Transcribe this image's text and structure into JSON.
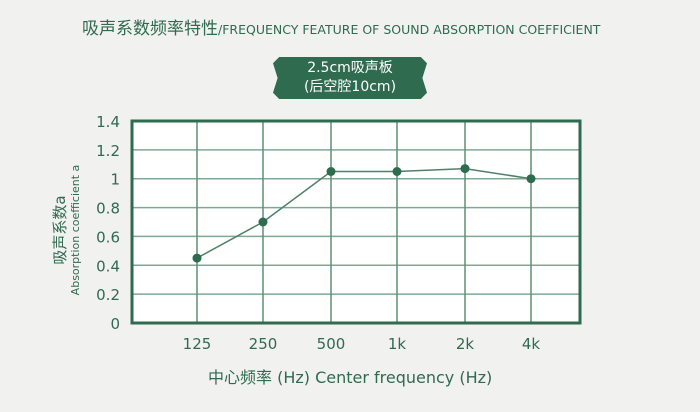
{
  "title": {
    "cn": "吸声系数频率特性",
    "en": "/FREQUENCY FEATURE OF SOUND ABSORPTION COEFFICIENT"
  },
  "badge": {
    "line1": "2.5cm吸声板",
    "line2": "(后空腔10cm)"
  },
  "colors": {
    "accent": "#2f6b4f",
    "background": "#f1f1ef"
  },
  "chart_data": {
    "type": "line",
    "categories": [
      "125",
      "250",
      "500",
      "1k",
      "2k",
      "4k"
    ],
    "values": [
      0.45,
      0.7,
      1.05,
      1.05,
      1.07,
      1.0
    ],
    "ylim": [
      0,
      1.4
    ],
    "yticks": [
      "0",
      "0.2",
      "0.4",
      "0.6",
      "0.8",
      "1",
      "1.2",
      "1.4"
    ],
    "xlabel": "中心频率 (Hz)  Center frequency (Hz)",
    "ylabel_cn": "吸声系数a",
    "ylabel_en": "Absorption coefficient a",
    "grid": true
  }
}
